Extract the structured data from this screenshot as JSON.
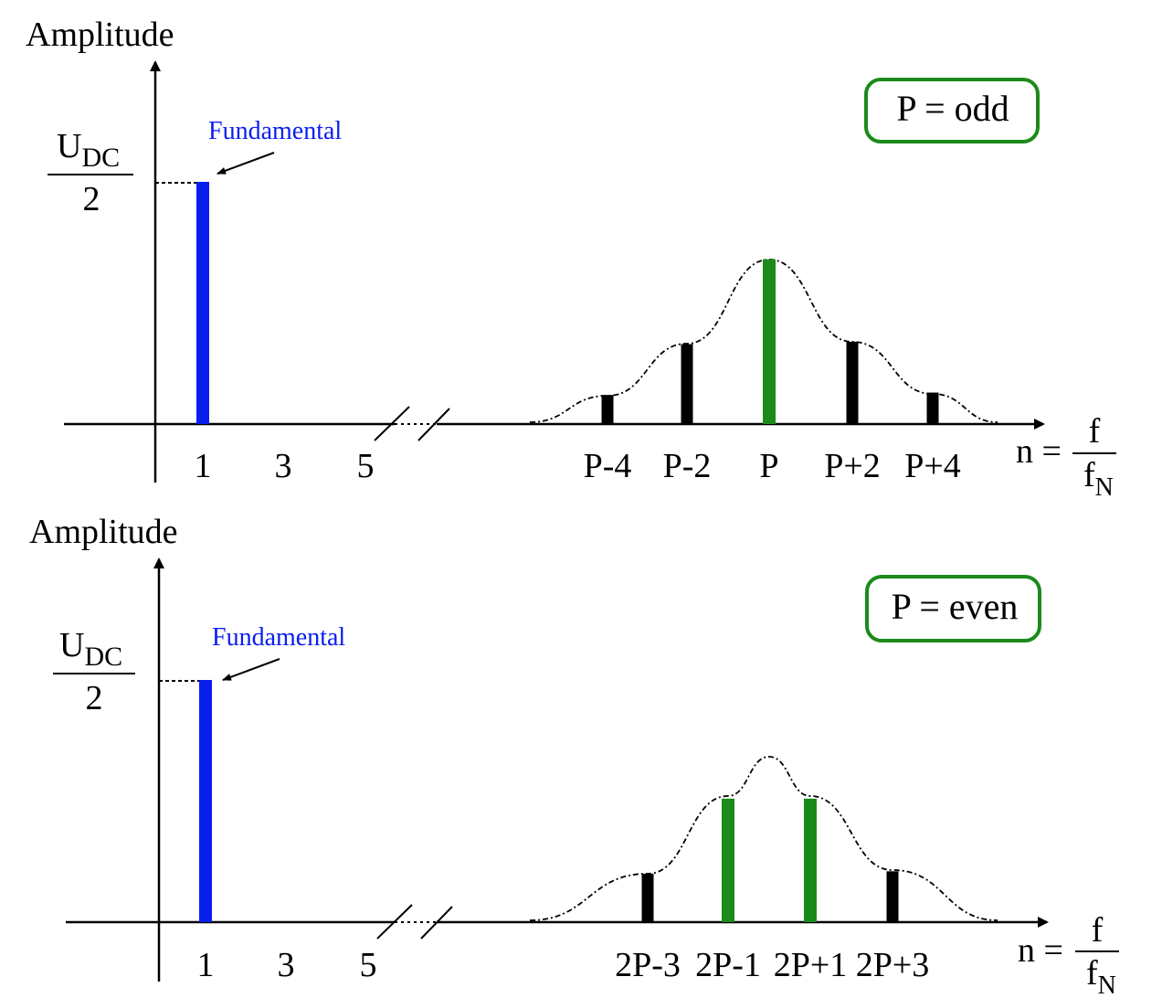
{
  "colors": {
    "fundamental": "#0a1ef0",
    "harmonic_main": "#1b8a1b",
    "harmonic_side": "#000000",
    "box_border": "#1b8a1b",
    "axis": "#000000"
  },
  "chart_data": [
    {
      "type": "bar",
      "ylabel": "Amplitude",
      "xlabel_lhs": "n =",
      "xlabel_num": "f",
      "xlabel_den_main": "f",
      "xlabel_den_sub": "N",
      "y_level_main": "U",
      "y_level_sub": "DC",
      "y_level_den": "2",
      "fundamental_label": "Fundamental",
      "box_label": "P = odd",
      "ticks_left": [
        "1",
        "3",
        "5"
      ],
      "bars": [
        {
          "label": "1",
          "value": 1.0,
          "kind": "fundamental"
        },
        {
          "label": "P-4",
          "value": 0.12,
          "kind": "side"
        },
        {
          "label": "P-2",
          "value": 0.33,
          "kind": "side"
        },
        {
          "label": "P",
          "value": 0.68,
          "kind": "main"
        },
        {
          "label": "P+2",
          "value": 0.34,
          "kind": "side"
        },
        {
          "label": "P+4",
          "value": 0.13,
          "kind": "side"
        }
      ],
      "ylim": [
        0,
        1.1
      ],
      "grid": false,
      "envelope": "dash-dot"
    },
    {
      "type": "bar",
      "ylabel": "Amplitude",
      "xlabel_lhs": "n =",
      "xlabel_num": "f",
      "xlabel_den_main": "f",
      "xlabel_den_sub": "N",
      "y_level_main": "U",
      "y_level_sub": "DC",
      "y_level_den": "2",
      "fundamental_label": "Fundamental",
      "box_label": "P = even",
      "ticks_left": [
        "1",
        "3",
        "5"
      ],
      "bars": [
        {
          "label": "1",
          "value": 1.0,
          "kind": "fundamental"
        },
        {
          "label": "2P-3",
          "value": 0.2,
          "kind": "side"
        },
        {
          "label": "2P-1",
          "value": 0.51,
          "kind": "main"
        },
        {
          "label": "2P+1",
          "value": 0.51,
          "kind": "main"
        },
        {
          "label": "2P+3",
          "value": 0.21,
          "kind": "side"
        }
      ],
      "ylim": [
        0,
        1.1
      ],
      "grid": false,
      "envelope": "dash-dot"
    }
  ]
}
